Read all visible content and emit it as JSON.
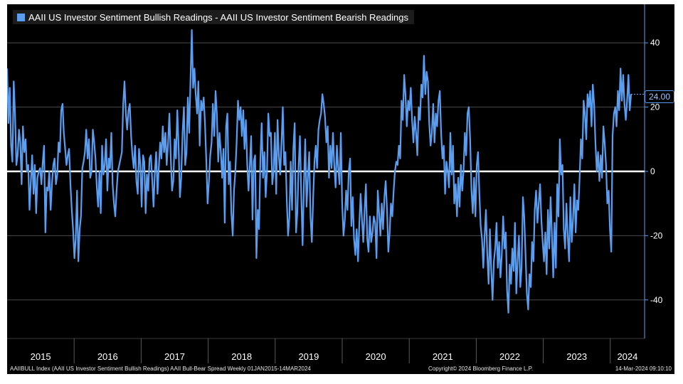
{
  "chart_data": {
    "type": "line",
    "legend": "AAII US Investor Sentiment Bullish Readings - AAII US Investor Sentiment Bearish Readings",
    "series": [
      {
        "name": "AAII US Investor Sentiment Bullish Readings - AAII US Investor Sentiment Bearish Readings",
        "color": "#5b9ef0",
        "x_start": 2015.0,
        "x_end": 2024.2,
        "values": [
          32,
          15,
          26,
          8,
          3,
          28,
          18,
          2,
          5,
          13,
          9,
          -4,
          14,
          6,
          10,
          0,
          2,
          -12,
          -3,
          5,
          -7,
          2,
          -13,
          -2,
          0,
          1,
          -4,
          3,
          8,
          -19,
          -5,
          -6,
          0,
          -12,
          -4,
          2,
          4,
          -4,
          -1,
          9,
          6,
          19,
          21,
          12,
          7,
          2,
          5,
          7,
          -4,
          -12,
          -18,
          -27,
          -21,
          -6,
          -28,
          -18,
          -14,
          1,
          3,
          6,
          13,
          4,
          10,
          -2,
          0,
          13,
          9,
          4,
          -5,
          -11,
          0,
          -13,
          8,
          -1,
          2,
          10,
          -6,
          4,
          1,
          12,
          -4,
          -10,
          -14,
          -6,
          0,
          2,
          4,
          6,
          21,
          28,
          18,
          13,
          19,
          21,
          11,
          5,
          1,
          8,
          -3,
          -7,
          7,
          2,
          -11,
          5,
          3,
          -13,
          -1,
          -6,
          4,
          5,
          -3,
          -11,
          0,
          6,
          -7,
          1,
          9,
          4,
          14,
          6,
          12,
          2,
          9,
          18,
          5,
          -6,
          -3,
          10,
          4,
          19,
          8,
          -8,
          -2,
          12,
          20,
          2,
          6,
          23,
          12,
          28,
          44,
          26,
          32,
          24,
          18,
          28,
          8,
          22,
          19,
          23,
          15,
          3,
          -10,
          -3,
          5,
          9,
          21,
          11,
          25,
          18,
          3,
          12,
          6,
          -2,
          7,
          -16,
          14,
          18,
          -4,
          3,
          -13,
          -20,
          -6,
          0,
          9,
          22,
          16,
          20,
          11,
          19,
          7,
          16,
          2,
          -6,
          2,
          11,
          -15,
          3,
          5,
          -27,
          -12,
          -18,
          4,
          15,
          -2,
          6,
          -8,
          0,
          18,
          11,
          12,
          -4,
          0,
          12,
          -7,
          16,
          5,
          -1,
          9,
          20,
          2,
          6,
          -9,
          -20,
          -14,
          3,
          -12,
          7,
          15,
          -19,
          -13,
          2,
          11,
          -8,
          -23,
          -4,
          10,
          -11,
          -2,
          6,
          -14,
          -22,
          -8,
          3,
          8,
          1,
          13,
          16,
          18,
          24,
          21,
          17,
          9,
          14,
          -2,
          8,
          1,
          12,
          2,
          -5,
          8,
          1,
          -4,
          12,
          -10,
          -20,
          -15,
          -6,
          -12,
          0,
          4,
          -17,
          -8,
          -21,
          -26,
          -18,
          -28,
          -16,
          -7,
          -15,
          -22,
          -12,
          -4,
          -21,
          -25,
          -14,
          -22,
          -19,
          -14,
          -16,
          -27,
          -6,
          -13,
          -20,
          -10,
          -18,
          -8,
          -3,
          -12,
          -25,
          -19,
          -10,
          -14,
          -6,
          0,
          3,
          2,
          8,
          4,
          22,
          16,
          30,
          24,
          14,
          22,
          19,
          26,
          16,
          9,
          17,
          12,
          5,
          20,
          16,
          27,
          23,
          36,
          24,
          31,
          28,
          15,
          8,
          12,
          21,
          9,
          18,
          14,
          22,
          25,
          12,
          4,
          8,
          -7,
          3,
          0,
          -5,
          12,
          -1,
          8,
          -10,
          -4,
          -14,
          -2,
          -11,
          2,
          -6,
          0,
          12,
          5,
          18,
          20,
          10,
          -6,
          -13,
          -2,
          -14,
          2,
          6,
          -7,
          -17,
          -21,
          -30,
          -20,
          -12,
          -26,
          -35,
          -18,
          -31,
          -40,
          -28,
          -24,
          -16,
          -30,
          -22,
          -33,
          -26,
          -14,
          -24,
          -19,
          -37,
          -44,
          -29,
          -35,
          -24,
          -31,
          -16,
          -38,
          -28,
          -20,
          -36,
          -30,
          -8,
          -14,
          -26,
          -38,
          -43,
          -32,
          -36,
          -22,
          -28,
          -12,
          -6,
          -16,
          -10,
          -4,
          -15,
          -22,
          -28,
          -19,
          -32,
          -12,
          -24,
          -8,
          -20,
          -33,
          -16,
          -30,
          -4,
          -14,
          10,
          -1,
          2,
          -18,
          -24,
          -10,
          -20,
          -28,
          -8,
          -22,
          -15,
          -4,
          -19,
          -9,
          -12,
          -2,
          10,
          4,
          22,
          18,
          10,
          24,
          20,
          25,
          14,
          27,
          21,
          9,
          0,
          6,
          -3,
          5,
          -2,
          14,
          9,
          2,
          -10,
          -6,
          -18,
          -25,
          11,
          18,
          20,
          14,
          25,
          19,
          32,
          22,
          30,
          21,
          16,
          22,
          30,
          19,
          24
        ]
      }
    ],
    "x_ticks": [
      "2015",
      "2016",
      "2017",
      "2018",
      "2019",
      "2020",
      "2021",
      "2022",
      "2023",
      "2024"
    ],
    "y_ticks": [
      40,
      20,
      0,
      -20,
      -40
    ],
    "ylim": [
      -52,
      52
    ],
    "last_value_label": "24.00",
    "grid": true,
    "zero_line": true
  },
  "footer": {
    "left": "AAIIBULL Index (AAII US Investor Sentiment Bullish Readings) AAII Bull-Bear Spread  Weekly 01JAN2015-14MAR2024",
    "center": "Copyright© 2024 Bloomberg Finance L.P.",
    "right": "14-Mar-2024 09:10:10"
  },
  "colors": {
    "background": "#000000",
    "series": "#5b9ef0",
    "grid": "#4a4a4a",
    "axis_text": "#ffffff",
    "zero_line": "#ffffff"
  }
}
